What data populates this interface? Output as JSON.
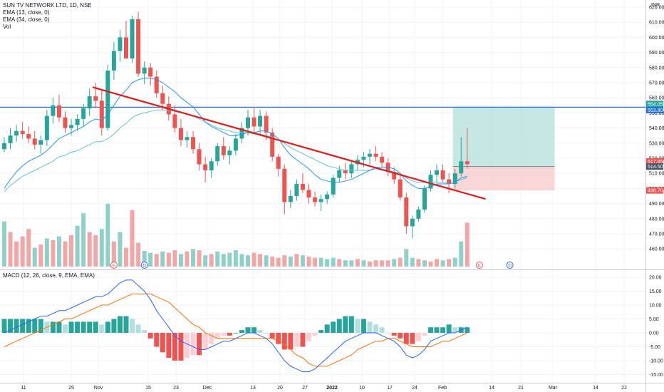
{
  "legend": {
    "symbol": "SUN TV NETWORK LTD, 1D, NSE",
    "ema13": "EMA (13, close, 0)",
    "ema34": "EMA (34, close, 0)",
    "vol": "Vol"
  },
  "macd_legend": "MACD (12, 26, close, 9, EMA, EMA)",
  "currency": "INR",
  "colors": {
    "up": "#26a69a",
    "down": "#ef5350",
    "vol_up": "#8fd1c9",
    "vol_down": "#f4a6a6",
    "ema13": "#2196f3",
    "ema34": "#5ec4d6",
    "trendline": "#e51a1a",
    "hline": "#1e6fd9",
    "profit_zone": "#b2e0dc",
    "loss_zone": "#f7c9c9",
    "macd_line": "#2962ff",
    "signal_line": "#ff6d00",
    "hist_up_strong": "#26a69a",
    "hist_up_weak": "#b2dfdb",
    "hist_down_strong": "#ef5350",
    "hist_down_weak": "#ffcdd2"
  },
  "price_axis": {
    "ticks": [
      "620.00",
      "610.00",
      "600.00",
      "590.00",
      "580.00",
      "570.00",
      "560.00",
      "550.00",
      "540.00",
      "530.00",
      "520.00",
      "510.00",
      "500.00",
      "490.00",
      "480.00",
      "470.00",
      "460.00"
    ],
    "tags": [
      {
        "text": "554.05",
        "color": "#26a69a"
      },
      {
        "text": "553.80",
        "color": "#1e6fd9"
      },
      {
        "text": "517.85",
        "color": "#ef5350"
      },
      {
        "text": "514.50",
        "color": "#4a5568"
      },
      {
        "text": "498.70",
        "color": "#ef5350"
      }
    ]
  },
  "macd_axis": {
    "ticks": [
      "20.00",
      "15.00",
      "10.00",
      "5.00",
      "0.00",
      "-5.00",
      "-10.00",
      "-15.00"
    ]
  },
  "x_axis": {
    "labels": [
      {
        "text": "11",
        "bold": false
      },
      {
        "text": "25",
        "bold": false
      },
      {
        "text": "Nov",
        "bold": false
      },
      {
        "text": "15",
        "bold": false
      },
      {
        "text": "23",
        "bold": false
      },
      {
        "text": "Dec",
        "bold": false
      },
      {
        "text": "13",
        "bold": false
      },
      {
        "text": "20",
        "bold": false
      },
      {
        "text": "27",
        "bold": false
      },
      {
        "text": "2022",
        "bold": true
      },
      {
        "text": "10",
        "bold": false
      },
      {
        "text": "17",
        "bold": false
      },
      {
        "text": "24",
        "bold": false
      },
      {
        "text": "Feb",
        "bold": false
      },
      {
        "text": "14",
        "bold": false
      },
      {
        "text": "21",
        "bold": false
      },
      {
        "text": "Mar",
        "bold": false
      },
      {
        "text": "14",
        "bold": false
      },
      {
        "text": "22",
        "bold": false
      }
    ]
  },
  "markers": [
    {
      "letter": "E",
      "type": "earnings"
    },
    {
      "letter": "D",
      "type": "dividend"
    },
    {
      "letter": "E",
      "type": "earnings"
    },
    {
      "letter": "D",
      "type": "dividend"
    }
  ],
  "chart_data": {
    "type": "candlestick",
    "title": "SUN TV NETWORK LTD, 1D, NSE",
    "ylim": [
      455,
      625
    ],
    "candles": [
      [
        526,
        534,
        524,
        530
      ],
      [
        530,
        540,
        526,
        535
      ],
      [
        535,
        542,
        531,
        538
      ],
      [
        538,
        544,
        533,
        536
      ],
      [
        536,
        541,
        530,
        533
      ],
      [
        533,
        538,
        526,
        529
      ],
      [
        529,
        535,
        523,
        532
      ],
      [
        532,
        552,
        528,
        548
      ],
      [
        548,
        560,
        543,
        555
      ],
      [
        555,
        562,
        544,
        547
      ],
      [
        547,
        551,
        537,
        540
      ],
      [
        540,
        546,
        535,
        542
      ],
      [
        542,
        549,
        538,
        546
      ],
      [
        546,
        556,
        541,
        553
      ],
      [
        553,
        566,
        548,
        561
      ],
      [
        561,
        570,
        553,
        558
      ],
      [
        558,
        565,
        535,
        540
      ],
      [
        540,
        582,
        538,
        578
      ],
      [
        578,
        597,
        572,
        591
      ],
      [
        591,
        605,
        584,
        600
      ],
      [
        600,
        611,
        586,
        586
      ],
      [
        586,
        614,
        583,
        612
      ],
      [
        612,
        617,
        574,
        576
      ],
      [
        576,
        584,
        569,
        580
      ],
      [
        580,
        583,
        568,
        574
      ],
      [
        574,
        578,
        560,
        563
      ],
      [
        563,
        568,
        552,
        556
      ],
      [
        556,
        561,
        545,
        549
      ],
      [
        549,
        555,
        537,
        540
      ],
      [
        540,
        546,
        528,
        532
      ],
      [
        532,
        538,
        527,
        534
      ],
      [
        534,
        538,
        523,
        526
      ],
      [
        526,
        530,
        512,
        516
      ],
      [
        516,
        521,
        504,
        512
      ],
      [
        512,
        520,
        507,
        518
      ],
      [
        518,
        530,
        515,
        528
      ],
      [
        528,
        534,
        519,
        522
      ],
      [
        522,
        528,
        516,
        525
      ],
      [
        525,
        536,
        522,
        533
      ],
      [
        533,
        544,
        530,
        540
      ],
      [
        540,
        552,
        535,
        547
      ],
      [
        547,
        554,
        536,
        541
      ],
      [
        541,
        552,
        536,
        548
      ],
      [
        548,
        551,
        532,
        537
      ],
      [
        537,
        540,
        518,
        521
      ],
      [
        521,
        523,
        508,
        513
      ],
      [
        513,
        516,
        483,
        491
      ],
      [
        491,
        499,
        487,
        495
      ],
      [
        495,
        506,
        492,
        503
      ],
      [
        503,
        510,
        497,
        499
      ],
      [
        499,
        503,
        490,
        494
      ],
      [
        494,
        498,
        488,
        491
      ],
      [
        491,
        496,
        485,
        493
      ],
      [
        493,
        498,
        490,
        496
      ],
      [
        496,
        509,
        494,
        507
      ],
      [
        507,
        515,
        504,
        512
      ],
      [
        512,
        517,
        506,
        510
      ],
      [
        510,
        518,
        507,
        516
      ],
      [
        516,
        522,
        512,
        519
      ],
      [
        519,
        524,
        514,
        521
      ],
      [
        521,
        526,
        516,
        523
      ],
      [
        523,
        528,
        518,
        521
      ],
      [
        521,
        524,
        514,
        517
      ],
      [
        517,
        520,
        508,
        511
      ],
      [
        511,
        514,
        503,
        506
      ],
      [
        506,
        510,
        492,
        494
      ],
      [
        494,
        497,
        470,
        475
      ],
      [
        475,
        482,
        467,
        480
      ],
      [
        480,
        488,
        478,
        486
      ],
      [
        486,
        502,
        484,
        500
      ],
      [
        500,
        512,
        498,
        509
      ],
      [
        509,
        516,
        504,
        512
      ],
      [
        512,
        516,
        504,
        506
      ],
      [
        506,
        510,
        497,
        503
      ],
      [
        503,
        513,
        500,
        510
      ],
      [
        510,
        534,
        508,
        518
      ],
      [
        518,
        540,
        513,
        516
      ]
    ],
    "volumes": [
      [
        72,
        1
      ],
      [
        55,
        0
      ],
      [
        40,
        0
      ],
      [
        48,
        0
      ],
      [
        60,
        0
      ],
      [
        30,
        1
      ],
      [
        35,
        0
      ],
      [
        45,
        1
      ],
      [
        42,
        0
      ],
      [
        48,
        1
      ],
      [
        40,
        0
      ],
      [
        50,
        0
      ],
      [
        65,
        1
      ],
      [
        85,
        1
      ],
      [
        55,
        0
      ],
      [
        50,
        0
      ],
      [
        60,
        1
      ],
      [
        100,
        1
      ],
      [
        40,
        0
      ],
      [
        55,
        1
      ],
      [
        30,
        0
      ],
      [
        90,
        0
      ],
      [
        38,
        0
      ],
      [
        25,
        1
      ],
      [
        22,
        1
      ],
      [
        20,
        0
      ],
      [
        24,
        1
      ],
      [
        22,
        0
      ],
      [
        26,
        0
      ],
      [
        20,
        1
      ],
      [
        24,
        0
      ],
      [
        28,
        1
      ],
      [
        26,
        0
      ],
      [
        18,
        1
      ],
      [
        20,
        0
      ],
      [
        24,
        1
      ],
      [
        20,
        1
      ],
      [
        22,
        1
      ],
      [
        26,
        1
      ],
      [
        20,
        1
      ],
      [
        18,
        1
      ],
      [
        22,
        0
      ],
      [
        20,
        0
      ],
      [
        18,
        1
      ],
      [
        16,
        0
      ],
      [
        14,
        0
      ],
      [
        18,
        0
      ],
      [
        16,
        1
      ],
      [
        20,
        0
      ],
      [
        18,
        1
      ],
      [
        16,
        0
      ],
      [
        14,
        0
      ],
      [
        14,
        1
      ],
      [
        12,
        1
      ],
      [
        14,
        1
      ],
      [
        12,
        0
      ],
      [
        10,
        1
      ],
      [
        10,
        1
      ],
      [
        12,
        0
      ],
      [
        10,
        1
      ],
      [
        8,
        0
      ],
      [
        10,
        0
      ],
      [
        10,
        0
      ],
      [
        10,
        0
      ],
      [
        12,
        1
      ],
      [
        14,
        0
      ],
      [
        28,
        1
      ],
      [
        14,
        1
      ],
      [
        12,
        0
      ],
      [
        10,
        1
      ],
      [
        8,
        0
      ],
      [
        12,
        0
      ],
      [
        10,
        1
      ],
      [
        12,
        0
      ],
      [
        14,
        1
      ],
      [
        40,
        1
      ],
      [
        70,
        0
      ]
    ],
    "ema13": [
      500,
      506,
      511,
      515,
      518,
      520,
      522,
      525,
      529,
      533,
      535,
      537,
      539,
      541,
      544,
      546,
      545,
      549,
      555,
      561,
      565,
      570,
      572,
      573,
      573,
      572,
      570,
      567,
      564,
      560,
      557,
      554,
      549,
      544,
      541,
      539,
      537,
      535,
      535,
      536,
      537,
      537,
      538,
      538,
      536,
      533,
      527,
      522,
      519,
      516,
      513,
      509,
      506,
      505,
      504,
      504,
      505,
      506,
      508,
      510,
      512,
      514,
      514,
      514,
      513,
      510,
      505,
      502,
      500,
      500,
      501,
      503,
      503,
      503,
      504,
      507,
      508
    ],
    "ema34": [
      498,
      502,
      505,
      508,
      510,
      512,
      514,
      516,
      518,
      521,
      522,
      524,
      525,
      527,
      529,
      531,
      531,
      533,
      536,
      540,
      543,
      547,
      549,
      550,
      551,
      552,
      552,
      552,
      551,
      550,
      549,
      548,
      546,
      544,
      542,
      540,
      539,
      538,
      537,
      537,
      537,
      536,
      536,
      535,
      534,
      532,
      530,
      527,
      525,
      523,
      521,
      519,
      517,
      515,
      514,
      513,
      512,
      512,
      512,
      512,
      512,
      513,
      512,
      512,
      511,
      510,
      507,
      505,
      504,
      504,
      504,
      504,
      504,
      503,
      504,
      506,
      507
    ],
    "macd": [
      0,
      1,
      2,
      3,
      4,
      5,
      6,
      6,
      7,
      8,
      8,
      9,
      10,
      11,
      12,
      13,
      13,
      14,
      16,
      18,
      19,
      19,
      17,
      15,
      12,
      8,
      5,
      2,
      -1,
      -3,
      -4,
      -5,
      -6,
      -6,
      -5,
      -4,
      -3,
      -3,
      -2,
      -1,
      0,
      0,
      -1,
      -2,
      -4,
      -7,
      -10,
      -12,
      -13,
      -14,
      -14,
      -13,
      -11,
      -9,
      -7,
      -5,
      -3,
      -2,
      -1,
      0,
      0,
      0,
      -1,
      -2,
      -3,
      -5,
      -8,
      -9,
      -8,
      -6,
      -3,
      -2,
      -1,
      0,
      0,
      1,
      2
    ],
    "signal": [
      -5,
      -4,
      -3,
      -2,
      -1,
      0,
      1,
      2,
      3,
      4,
      5,
      5,
      6,
      7,
      8,
      9,
      10,
      10,
      11,
      12,
      13,
      14,
      14,
      14,
      14,
      13,
      12,
      11,
      9,
      7,
      5,
      3,
      2,
      0,
      -1,
      -2,
      -2,
      -2,
      -2,
      -2,
      -2,
      -2,
      -2,
      -2,
      -2,
      -3,
      -4,
      -6,
      -8,
      -9,
      -11,
      -12,
      -12,
      -12,
      -11,
      -10,
      -9,
      -8,
      -6,
      -5,
      -4,
      -3,
      -3,
      -2,
      -2,
      -3,
      -4,
      -5,
      -5,
      -5,
      -5,
      -4,
      -3,
      -3,
      -2,
      -1,
      0
    ],
    "histogram": [
      5,
      5,
      5,
      5,
      5,
      5,
      5,
      4,
      4,
      4,
      3,
      4,
      4,
      4,
      4,
      4,
      3,
      4,
      5,
      6,
      6,
      5,
      3,
      1,
      -2,
      -5,
      -7,
      -9,
      -10,
      -10,
      -9,
      -8,
      -8,
      -6,
      -4,
      -2,
      -1,
      -1,
      0,
      1,
      2,
      2,
      1,
      0,
      -2,
      -4,
      -6,
      -6,
      -5,
      -5,
      -3,
      -1,
      1,
      3,
      4,
      5,
      6,
      6,
      5,
      5,
      4,
      3,
      2,
      0,
      -1,
      -2,
      -4,
      -4,
      -3,
      -1,
      2,
      2,
      2,
      3,
      2,
      2,
      2
    ],
    "trendline": {
      "from": [
        14.5,
        567
      ],
      "to": [
        79,
        493
      ]
    },
    "horizontal_line": 553.8,
    "position": {
      "start": 74,
      "end": 90,
      "entry": 514.5,
      "target": 554.05,
      "stop": 498.7
    },
    "macd_ylim": [
      -18,
      22
    ]
  }
}
